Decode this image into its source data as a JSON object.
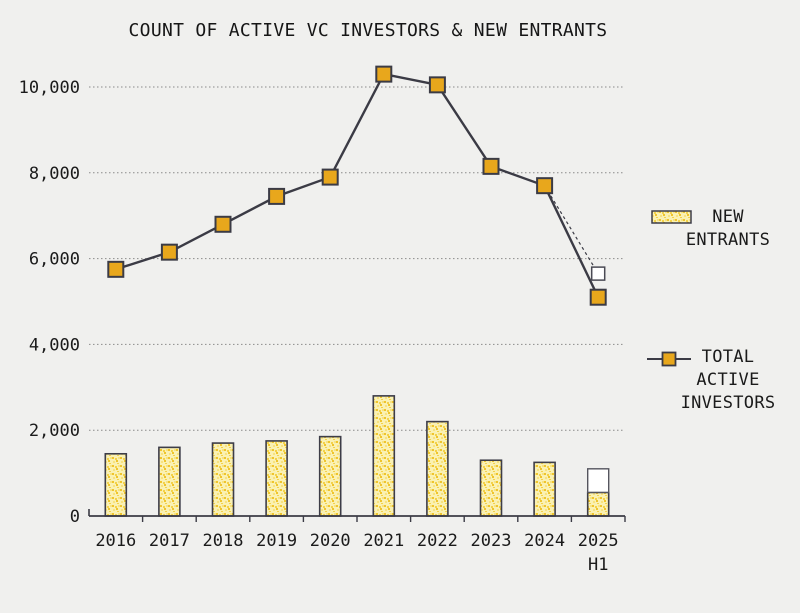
{
  "title": "COUNT OF ACTIVE VC INVESTORS & NEW ENTRANTS",
  "legend": {
    "position": "right",
    "items": [
      {
        "label": "NEW\nENTRANTS",
        "swatch": "dotted-yellow-bar"
      },
      {
        "label": "TOTAL\nACTIVE\nINVESTORS",
        "swatch": "line-with-orange-square-marker"
      }
    ]
  },
  "colors": {
    "background": "#f0f0ee",
    "line": "#3b3b45",
    "marker_fill": "#e8a71c",
    "bar_base": "#faf1b3",
    "bar_dot_strong": "#efc42c",
    "bar_dot_mid": "#f3d24b",
    "bar_dot_light": "#f7e27f",
    "bar_border": "#3d3d48",
    "projection_fill": "#ffffff",
    "projection_border": "#55555e",
    "grid": "#8a8a8a",
    "text": "#1b1b1b"
  },
  "chart_data": {
    "type": "combo-line-bar",
    "title": "COUNT OF ACTIVE VC INVESTORS & NEW ENTRANTS",
    "grid": "horizontal-dotted",
    "legend_position": "right",
    "ylim": [
      0,
      10700
    ],
    "yticks": [
      0,
      2000,
      4000,
      6000,
      8000,
      10000
    ],
    "ytick_labels": [
      "0",
      "2,000",
      "4,000",
      "6,000",
      "8,000",
      "10,000"
    ],
    "categories": [
      {
        "label": "2016"
      },
      {
        "label": "2017"
      },
      {
        "label": "2018"
      },
      {
        "label": "2019"
      },
      {
        "label": "2020"
      },
      {
        "label": "2021"
      },
      {
        "label": "2022"
      },
      {
        "label": "2023"
      },
      {
        "label": "2024"
      },
      {
        "label": "2025",
        "sublabel": "H1"
      }
    ],
    "series": [
      {
        "name": "NEW ENTRANTS",
        "type": "bar",
        "values": [
          1450,
          1600,
          1700,
          1750,
          1850,
          2800,
          2200,
          1300,
          1250,
          550
        ],
        "projection": {
          "category": "2025 H1",
          "full_year_estimate": 1100,
          "style": "hollow-bar-extension"
        }
      },
      {
        "name": "TOTAL ACTIVE INVESTORS",
        "type": "line",
        "values": [
          5750,
          6150,
          6800,
          7450,
          7900,
          10300,
          10050,
          8150,
          7700,
          5100
        ],
        "projection": {
          "category": "2025 H1",
          "full_year_estimate": 5650,
          "style": "dashed-line-hollow-marker"
        }
      }
    ]
  }
}
